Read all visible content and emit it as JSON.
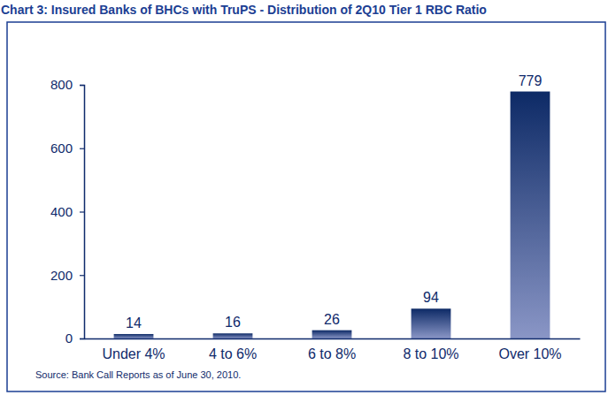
{
  "chart_data": {
    "type": "bar",
    "title": "Chart 3: Insured Banks of BHCs with TruPS - Distribution of 2Q10 Tier 1 RBC Ratio",
    "categories": [
      "Under 4%",
      "4 to 6%",
      "6 to 8%",
      "8 to 10%",
      "Over 10%"
    ],
    "values": [
      14,
      16,
      26,
      94,
      779
    ],
    "color": "#0d2a66",
    "ylim": [
      0,
      800
    ],
    "yticks": [
      0,
      200,
      400,
      600,
      800
    ],
    "grid": false,
    "data_labels": true,
    "annotations": [
      "Source: Bank Call Reports as of June 30, 2010."
    ]
  }
}
